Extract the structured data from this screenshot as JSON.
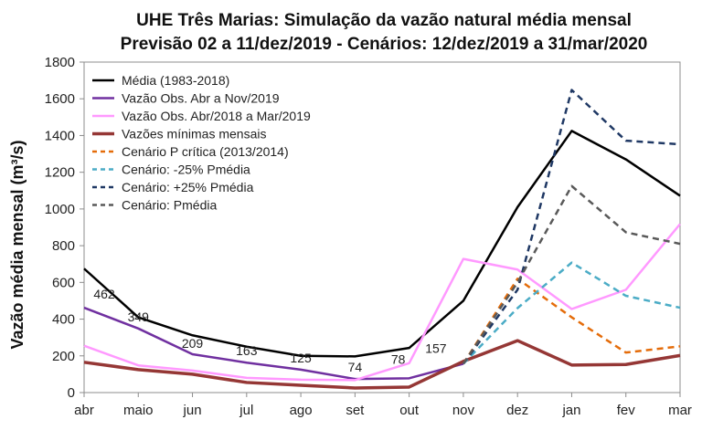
{
  "chart_data": {
    "type": "line",
    "title": "UHE Três Marias: Simulação da vazão natural média mensal",
    "subtitle": "Previsão 02 a 11/dez/2019 - Cenários: 12/dez/2019 a 31/mar/2020",
    "ylabel": "Vazão média mensal (m³/s)",
    "xlabel": "",
    "categories": [
      "abr",
      "maio",
      "jun",
      "jul",
      "ago",
      "set",
      "out",
      "nov",
      "dez",
      "jan",
      "fev",
      "mar"
    ],
    "ylim": [
      0,
      1800
    ],
    "yticks": [
      0,
      200,
      400,
      600,
      800,
      1000,
      1200,
      1400,
      1600,
      1800
    ],
    "grid": false,
    "legend_position": "top-left",
    "series": [
      {
        "name": "Média (1983-2018)",
        "color": "#000000",
        "dash": "solid",
        "width": 2.5,
        "values": [
          675,
          410,
          312,
          250,
          200,
          197,
          243,
          500,
          1010,
          1425,
          1270,
          1072
        ]
      },
      {
        "name": "Vazão Obs. Abr a Nov/2019",
        "color": "#7030a0",
        "dash": "solid",
        "width": 2.5,
        "values": [
          462,
          349,
          209,
          163,
          125,
          74,
          78,
          157,
          null,
          null,
          null,
          null
        ]
      },
      {
        "name": "Vazão Obs. Abr/2018 a Mar/2019",
        "color": "#ff99ff",
        "dash": "solid",
        "width": 2.5,
        "values": [
          255,
          148,
          120,
          80,
          70,
          68,
          160,
          728,
          670,
          455,
          560,
          918
        ]
      },
      {
        "name": "Vazões mínimas mensais",
        "color": "#953735",
        "dash": "solid",
        "width": 3.5,
        "values": [
          165,
          125,
          100,
          55,
          40,
          25,
          30,
          170,
          283,
          150,
          153,
          202
        ]
      },
      {
        "name": "Cenário P crítica (2013/2014)",
        "color": "#e46c0a",
        "dash": "dashed",
        "width": 2.5,
        "values": [
          null,
          null,
          null,
          null,
          null,
          null,
          null,
          157,
          620,
          410,
          218,
          252
        ]
      },
      {
        "name": "Cenário: -25% Pmédia",
        "color": "#4bacc6",
        "dash": "dashed",
        "width": 2.5,
        "values": [
          null,
          null,
          null,
          null,
          null,
          null,
          null,
          157,
          460,
          708,
          527,
          462
        ]
      },
      {
        "name": "Cenário: +25% Pmédia",
        "color": "#1f3864",
        "dash": "dashed",
        "width": 2.5,
        "values": [
          null,
          null,
          null,
          null,
          null,
          null,
          null,
          157,
          560,
          1648,
          1372,
          1352
        ]
      },
      {
        "name": "Cenário: Pmédia",
        "color": "#595959",
        "dash": "dashed",
        "width": 2.5,
        "values": [
          null,
          null,
          null,
          null,
          null,
          null,
          null,
          157,
          600,
          1125,
          873,
          810
        ]
      }
    ],
    "data_labels": [
      {
        "category": "abr",
        "value": 462,
        "text": "462"
      },
      {
        "category": "maio",
        "value": 349,
        "text": "349"
      },
      {
        "category": "jun",
        "value": 209,
        "text": "209"
      },
      {
        "category": "jul",
        "value": 163,
        "text": "163"
      },
      {
        "category": "ago",
        "value": 125,
        "text": "125"
      },
      {
        "category": "set",
        "value": 74,
        "text": "74"
      },
      {
        "category": "out",
        "value": 78,
        "text": "78"
      },
      {
        "category": "nov",
        "value": 157,
        "text": "157"
      }
    ]
  }
}
